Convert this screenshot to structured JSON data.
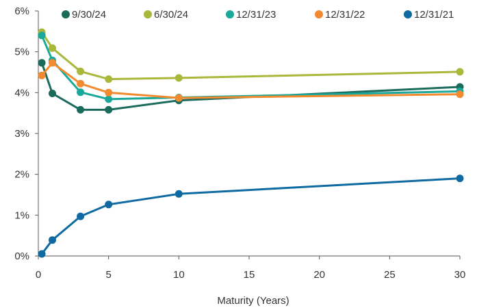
{
  "chart_data": {
    "type": "line",
    "title": "",
    "xlabel": "Maturity (Years)",
    "ylabel": "",
    "xlim": [
      0,
      30
    ],
    "ylim": [
      0,
      6
    ],
    "x_ticks": [
      0,
      5,
      10,
      15,
      20,
      25,
      30
    ],
    "y_ticks": [
      0,
      1,
      2,
      3,
      4,
      5,
      6
    ],
    "y_tick_suffix": "%",
    "grid": false,
    "legend_position": "top",
    "series": [
      {
        "name": "9/30/24",
        "color": "#1b6b5c",
        "points": [
          [
            0.25,
            4.73
          ],
          [
            1,
            3.98
          ],
          [
            3,
            3.58
          ],
          [
            5,
            3.58
          ],
          [
            10,
            3.81
          ],
          [
            30,
            4.14
          ]
        ]
      },
      {
        "name": "6/30/24",
        "color": "#a9b83a",
        "points": [
          [
            0.25,
            5.48
          ],
          [
            1,
            5.09
          ],
          [
            3,
            4.52
          ],
          [
            5,
            4.33
          ],
          [
            10,
            4.36
          ],
          [
            30,
            4.51
          ]
        ]
      },
      {
        "name": "12/31/23",
        "color": "#1aa89b",
        "points": [
          [
            0.25,
            5.4
          ],
          [
            1,
            4.79
          ],
          [
            3,
            4.01
          ],
          [
            5,
            3.84
          ],
          [
            10,
            3.88
          ],
          [
            30,
            4.03
          ]
        ]
      },
      {
        "name": "12/31/22",
        "color": "#f28a30",
        "points": [
          [
            0.25,
            4.42
          ],
          [
            1,
            4.73
          ],
          [
            3,
            4.22
          ],
          [
            5,
            4.0
          ],
          [
            10,
            3.87
          ],
          [
            30,
            3.96
          ]
        ]
      },
      {
        "name": "12/31/21",
        "color": "#0e6aa1",
        "points": [
          [
            0.25,
            0.05
          ],
          [
            1,
            0.39
          ],
          [
            3,
            0.97
          ],
          [
            5,
            1.26
          ],
          [
            10,
            1.52
          ],
          [
            30,
            1.9
          ]
        ]
      }
    ]
  }
}
